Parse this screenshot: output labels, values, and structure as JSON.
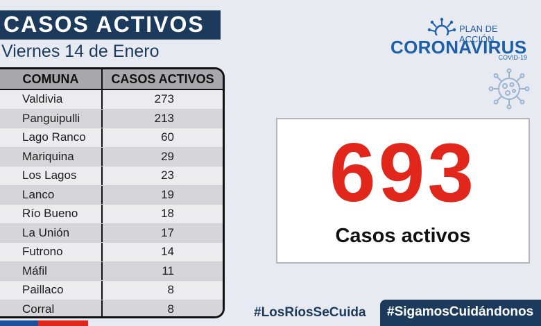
{
  "header": {
    "title": "CASOS ACTIVOS",
    "date": "Viernes 14 de Enero"
  },
  "table": {
    "headers": [
      "COMUNA",
      "CASOS ACTIVOS"
    ],
    "rows": [
      {
        "comuna": "Valdivia",
        "casos": "273"
      },
      {
        "comuna": "Panguipulli",
        "casos": "213"
      },
      {
        "comuna": "Lago Ranco",
        "casos": "60"
      },
      {
        "comuna": "Mariquina",
        "casos": "29"
      },
      {
        "comuna": "Los Lagos",
        "casos": "23"
      },
      {
        "comuna": "Lanco",
        "casos": "19"
      },
      {
        "comuna": "Río Bueno",
        "casos": "18"
      },
      {
        "comuna": "La Unión",
        "casos": "17"
      },
      {
        "comuna": "Futrono",
        "casos": "14"
      },
      {
        "comuna": "Máfil",
        "casos": "11"
      },
      {
        "comuna": "Paillaco",
        "casos": "8"
      },
      {
        "comuna": "Corral",
        "casos": "8"
      }
    ]
  },
  "logo": {
    "plan": "PLAN DE ACCIÓN",
    "main": "CORONAVIRUS",
    "sub": "COVID-19",
    "icon": "virus-icon"
  },
  "summary": {
    "total": "693",
    "label": "Casos activos"
  },
  "footer": {
    "hashtag_1": "#LosRíosSeCuida",
    "hashtag_2": "#SigamosCuidándonos"
  },
  "colors": {
    "navy": "#1b3a5c",
    "accent_red": "#e1261c",
    "logo_blue": "#1d5fa8"
  }
}
